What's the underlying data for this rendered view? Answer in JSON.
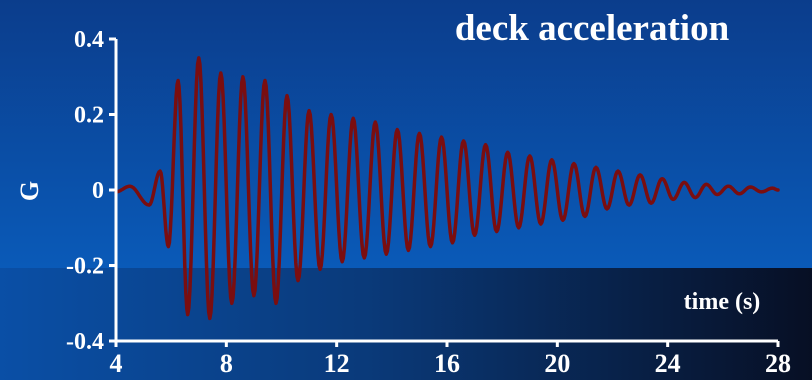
{
  "chart_data": {
    "type": "line",
    "title": "deck acceleration",
    "xlabel": "time (s)",
    "ylabel": "G",
    "xlim": [
      4,
      28
    ],
    "ylim": [
      -0.4,
      0.4
    ],
    "x_ticks": [
      4,
      8,
      12,
      16,
      20,
      24,
      28
    ],
    "y_ticks": [
      0.4,
      0.2,
      0,
      -0.2,
      -0.4
    ],
    "x_tick_labels": [
      "4",
      "8",
      "12",
      "16",
      "20",
      "24",
      "28"
    ],
    "y_tick_labels": [
      "0.4",
      "0.2",
      "0",
      "-0.2",
      "-0.4"
    ],
    "grid": false,
    "legend": "none",
    "series": [
      {
        "color": "#7a0e10",
        "peaks": [
          {
            "x": 4.0,
            "y": -0.005
          },
          {
            "x": 4.5,
            "y": 0.01
          },
          {
            "x": 5.2,
            "y": -0.04
          },
          {
            "x": 5.6,
            "y": 0.05
          },
          {
            "x": 5.9,
            "y": -0.15
          },
          {
            "x": 6.25,
            "y": 0.29
          },
          {
            "x": 6.6,
            "y": -0.33
          },
          {
            "x": 7.0,
            "y": 0.35
          },
          {
            "x": 7.4,
            "y": -0.34
          },
          {
            "x": 7.8,
            "y": 0.31
          },
          {
            "x": 8.2,
            "y": -0.3
          },
          {
            "x": 8.6,
            "y": 0.3
          },
          {
            "x": 9.0,
            "y": -0.28
          },
          {
            "x": 9.4,
            "y": 0.29
          },
          {
            "x": 9.8,
            "y": -0.3
          },
          {
            "x": 10.2,
            "y": 0.25
          },
          {
            "x": 10.6,
            "y": -0.24
          },
          {
            "x": 11.0,
            "y": 0.21
          },
          {
            "x": 11.4,
            "y": -0.21
          },
          {
            "x": 11.8,
            "y": 0.2
          },
          {
            "x": 12.2,
            "y": -0.19
          },
          {
            "x": 12.6,
            "y": 0.19
          },
          {
            "x": 13.0,
            "y": -0.18
          },
          {
            "x": 13.4,
            "y": 0.18
          },
          {
            "x": 13.8,
            "y": -0.17
          },
          {
            "x": 14.2,
            "y": 0.16
          },
          {
            "x": 14.6,
            "y": -0.16
          },
          {
            "x": 15.0,
            "y": 0.15
          },
          {
            "x": 15.4,
            "y": -0.15
          },
          {
            "x": 15.8,
            "y": 0.14
          },
          {
            "x": 16.2,
            "y": -0.14
          },
          {
            "x": 16.6,
            "y": 0.13
          },
          {
            "x": 17.0,
            "y": -0.12
          },
          {
            "x": 17.4,
            "y": 0.12
          },
          {
            "x": 17.8,
            "y": -0.11
          },
          {
            "x": 18.2,
            "y": 0.1
          },
          {
            "x": 18.6,
            "y": -0.1
          },
          {
            "x": 19.0,
            "y": 0.09
          },
          {
            "x": 19.4,
            "y": -0.09
          },
          {
            "x": 19.8,
            "y": 0.08
          },
          {
            "x": 20.2,
            "y": -0.08
          },
          {
            "x": 20.6,
            "y": 0.07
          },
          {
            "x": 21.0,
            "y": -0.07
          },
          {
            "x": 21.4,
            "y": 0.06
          },
          {
            "x": 21.8,
            "y": -0.05
          },
          {
            "x": 22.2,
            "y": 0.05
          },
          {
            "x": 22.6,
            "y": -0.04
          },
          {
            "x": 23.0,
            "y": 0.04
          },
          {
            "x": 23.4,
            "y": -0.035
          },
          {
            "x": 23.8,
            "y": 0.03
          },
          {
            "x": 24.2,
            "y": -0.025
          },
          {
            "x": 24.6,
            "y": 0.02
          },
          {
            "x": 25.0,
            "y": -0.02
          },
          {
            "x": 25.4,
            "y": 0.015
          },
          {
            "x": 25.8,
            "y": -0.012
          },
          {
            "x": 26.2,
            "y": 0.01
          },
          {
            "x": 26.6,
            "y": -0.01
          },
          {
            "x": 27.0,
            "y": 0.008
          },
          {
            "x": 27.4,
            "y": -0.005
          },
          {
            "x": 27.8,
            "y": 0.005
          },
          {
            "x": 28.0,
            "y": 0.0
          }
        ]
      }
    ]
  },
  "colors": {
    "background_top": "#0b3d8c",
    "background_mid": "#0a56b4",
    "background_bottom_band": "#0a1d44",
    "axis": "#ffffff",
    "text": "#ffffff",
    "series": "#7a0e10"
  }
}
